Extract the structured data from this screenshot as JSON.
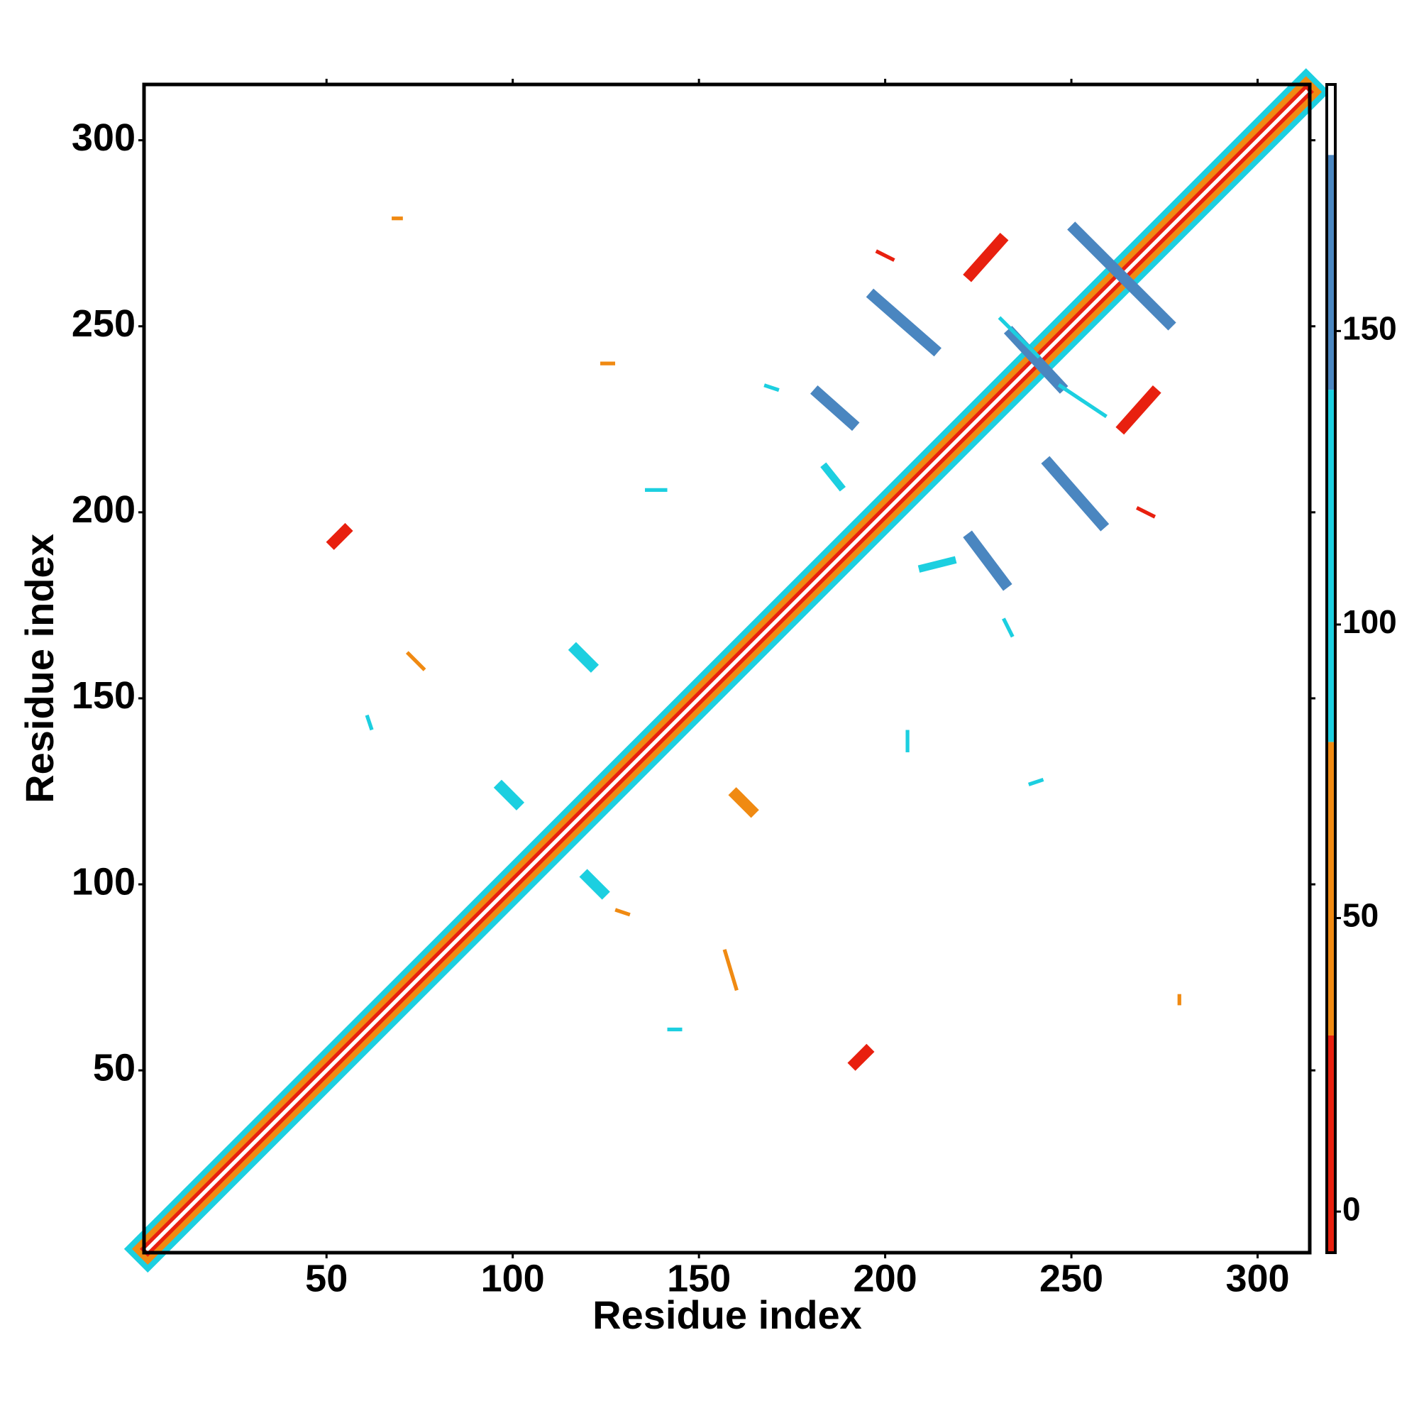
{
  "chart_data": {
    "type": "heatmap",
    "xlabel": "Residue index",
    "ylabel": "Residue index",
    "xlim": [
      1,
      314
    ],
    "ylim": [
      1,
      315
    ],
    "xticks": [
      50,
      100,
      150,
      200,
      250,
      300
    ],
    "yticks": [
      50,
      100,
      150,
      200,
      250,
      300
    ],
    "cells": [
      {
        "x": [
          2,
          313
        ],
        "y": [
          2,
          313
        ],
        "value": 110,
        "width": 9
      },
      {
        "x": [
          2,
          313
        ],
        "y": [
          2,
          313
        ],
        "value": 60,
        "width": 6
      },
      {
        "x": [
          2,
          313
        ],
        "y": [
          2,
          313
        ],
        "value": 15,
        "width": 3
      },
      {
        "x": [
          2,
          313
        ],
        "y": [
          2,
          313
        ],
        "value": 185,
        "width": 1
      },
      {
        "x": [
          52,
          55
        ],
        "y": [
          192,
          195
        ],
        "value": 10,
        "width": 3
      },
      {
        "x": [
          192,
          195
        ],
        "y": [
          52,
          55
        ],
        "value": 10,
        "width": 3
      },
      {
        "x": [
          197,
          213
        ],
        "y": [
          258,
          244
        ],
        "value": 160,
        "width": 3
      },
      {
        "x": [
          244,
          258
        ],
        "y": [
          213,
          197
        ],
        "value": 160,
        "width": 3
      },
      {
        "x": [
          251,
          276
        ],
        "y": [
          276,
          251
        ],
        "value": 150,
        "width": 3
      },
      {
        "x": [
          234,
          247
        ],
        "y": [
          248,
          234
        ],
        "value": 150,
        "width": 3
      },
      {
        "x": [
          223,
          231
        ],
        "y": [
          264,
          273
        ],
        "value": 15,
        "width": 3
      },
      {
        "x": [
          264,
          272
        ],
        "y": [
          223,
          232
        ],
        "value": 15,
        "width": 3
      },
      {
        "x": [
          182,
          191
        ],
        "y": [
          232,
          224
        ],
        "value": 150,
        "width": 3
      },
      {
        "x": [
          223,
          232
        ],
        "y": [
          193,
          181
        ],
        "value": 150,
        "width": 3
      },
      {
        "x": [
          247,
          259
        ],
        "y": [
          234,
          226
        ],
        "value": 110,
        "width": 1
      },
      {
        "x": [
          231,
          241
        ],
        "y": [
          252,
          242
        ],
        "value": 110,
        "width": 1
      },
      {
        "x": [
          117,
          121
        ],
        "y": [
          163,
          159
        ],
        "value": 100,
        "width": 3
      },
      {
        "x": [
          120,
          124
        ],
        "y": [
          102,
          98
        ],
        "value": 100,
        "width": 3
      },
      {
        "x": [
          97,
          101
        ],
        "y": [
          126,
          122
        ],
        "value": 100,
        "width": 3
      },
      {
        "x": [
          160,
          164
        ],
        "y": [
          124,
          120
        ],
        "value": 40,
        "width": 3
      },
      {
        "x": [
          157,
          160
        ],
        "y": [
          82,
          72
        ],
        "value": 60,
        "width": 1
      },
      {
        "x": [
          142,
          145
        ],
        "y": [
          61,
          61
        ],
        "value": 100,
        "width": 1
      },
      {
        "x": [
          61,
          62
        ],
        "y": [
          145,
          142
        ],
        "value": 100,
        "width": 1
      },
      {
        "x": [
          72,
          76
        ],
        "y": [
          162,
          158
        ],
        "value": 60,
        "width": 1
      },
      {
        "x": [
          136,
          141
        ],
        "y": [
          206,
          206
        ],
        "value": 100,
        "width": 1
      },
      {
        "x": [
          206,
          206
        ],
        "y": [
          141,
          136
        ],
        "value": 100,
        "width": 1
      },
      {
        "x": [
          239,
          242
        ],
        "y": [
          127,
          128
        ],
        "value": 100,
        "width": 1
      },
      {
        "x": [
          232,
          234
        ],
        "y": [
          171,
          167
        ],
        "value": 100,
        "width": 1
      },
      {
        "x": [
          210,
          218
        ],
        "y": [
          185,
          187
        ],
        "value": 100,
        "width": 2
      },
      {
        "x": [
          124,
          127
        ],
        "y": [
          240,
          240
        ],
        "value": 60,
        "width": 1
      },
      {
        "x": [
          168,
          171
        ],
        "y": [
          234,
          233
        ],
        "value": 100,
        "width": 1
      },
      {
        "x": [
          68,
          70
        ],
        "y": [
          279,
          279
        ],
        "value": 40,
        "width": 1
      },
      {
        "x": [
          279,
          279
        ],
        "y": [
          68,
          70
        ],
        "value": 40,
        "width": 1
      },
      {
        "x": [
          184,
          188
        ],
        "y": [
          212,
          207
        ],
        "value": 100,
        "width": 2
      },
      {
        "x": [
          268,
          272
        ],
        "y": [
          201,
          199
        ],
        "value": 20,
        "width": 1
      },
      {
        "x": [
          198,
          202
        ],
        "y": [
          270,
          268
        ],
        "value": 20,
        "width": 1
      },
      {
        "x": [
          128,
          131
        ],
        "y": [
          93,
          92
        ],
        "value": 60,
        "width": 1
      }
    ],
    "colorbar": {
      "ylim": [
        -7,
        192
      ],
      "yticks": [
        0,
        50,
        100,
        150
      ],
      "bands": [
        {
          "from": -7,
          "to": 30,
          "color": "#e8200f"
        },
        {
          "from": 30,
          "to": 80,
          "color": "#f08a12"
        },
        {
          "from": 80,
          "to": 140,
          "color": "#1ccfe0"
        },
        {
          "from": 140,
          "to": 180,
          "color": "#4a86c0"
        },
        {
          "from": 180,
          "to": 192,
          "color": "#ffffff"
        }
      ]
    }
  }
}
